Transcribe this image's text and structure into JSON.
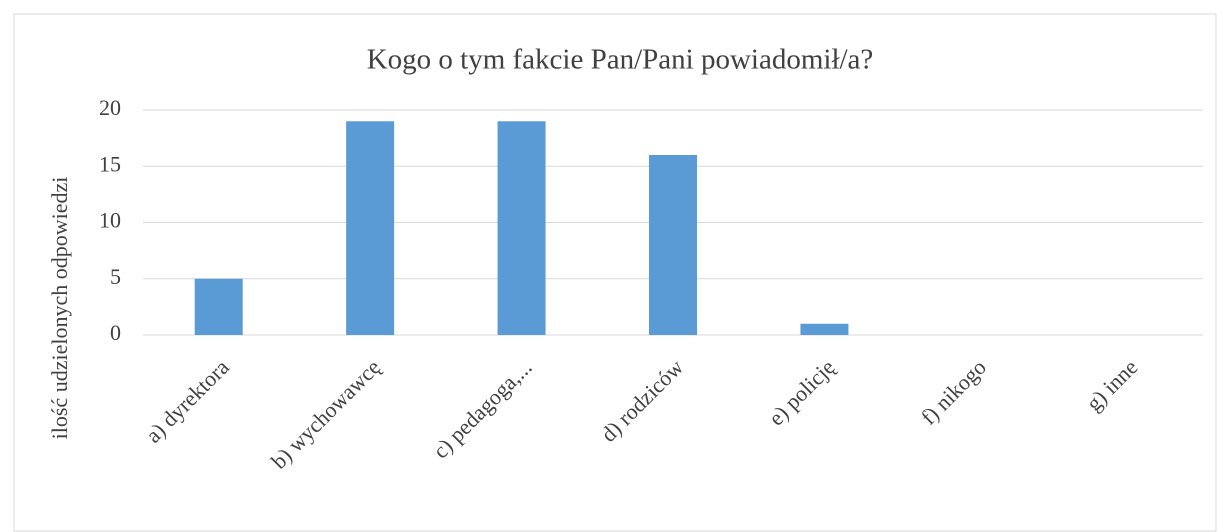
{
  "chart_data": {
    "type": "bar",
    "title": "Kogo o tym fakcie Pan/Pani powiadomił/a?",
    "y_label": "ilość udzielonych odpowiedzi",
    "categories": [
      "a) dyrektora",
      "b) wychowawcę",
      "c) pedagoga,...",
      "d) rodziców",
      "e) policję",
      "f) nikogo",
      "g) inne"
    ],
    "values": [
      5,
      19,
      19,
      16,
      1,
      0,
      0
    ],
    "color": "#5b9bd5",
    "ylim": [
      0,
      20
    ],
    "yticks": [
      0,
      5,
      10,
      15,
      20
    ],
    "grid": true
  }
}
